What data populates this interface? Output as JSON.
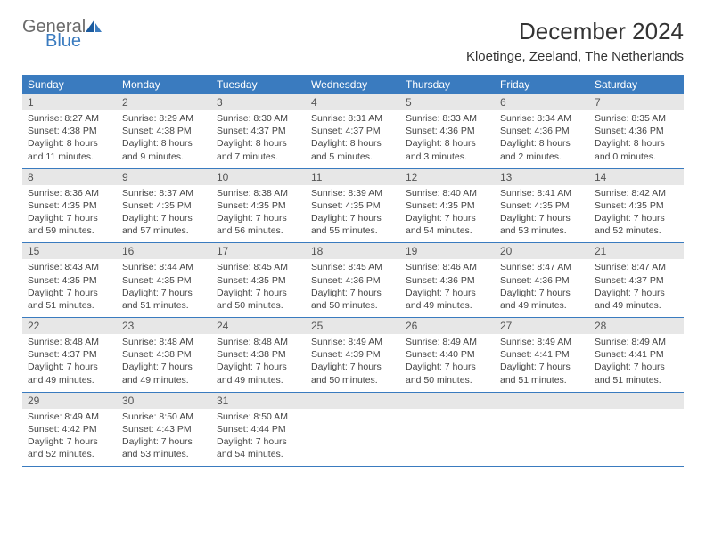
{
  "logo": {
    "general": "General",
    "blue": "Blue"
  },
  "title": "December 2024",
  "location": "Kloetinge, Zeeland, The Netherlands",
  "colors": {
    "header_bg": "#3a7bbf",
    "header_text": "#ffffff",
    "daynum_bg": "#e7e7e7",
    "week_border": "#3a7bbf",
    "body_text": "#444444",
    "logo_gray": "#6b6b6b",
    "logo_blue": "#3a7bbf"
  },
  "weekdays": [
    "Sunday",
    "Monday",
    "Tuesday",
    "Wednesday",
    "Thursday",
    "Friday",
    "Saturday"
  ],
  "weeks": [
    [
      {
        "n": "1",
        "sr": "Sunrise: 8:27 AM",
        "ss": "Sunset: 4:38 PM",
        "dl1": "Daylight: 8 hours",
        "dl2": "and 11 minutes."
      },
      {
        "n": "2",
        "sr": "Sunrise: 8:29 AM",
        "ss": "Sunset: 4:38 PM",
        "dl1": "Daylight: 8 hours",
        "dl2": "and 9 minutes."
      },
      {
        "n": "3",
        "sr": "Sunrise: 8:30 AM",
        "ss": "Sunset: 4:37 PM",
        "dl1": "Daylight: 8 hours",
        "dl2": "and 7 minutes."
      },
      {
        "n": "4",
        "sr": "Sunrise: 8:31 AM",
        "ss": "Sunset: 4:37 PM",
        "dl1": "Daylight: 8 hours",
        "dl2": "and 5 minutes."
      },
      {
        "n": "5",
        "sr": "Sunrise: 8:33 AM",
        "ss": "Sunset: 4:36 PM",
        "dl1": "Daylight: 8 hours",
        "dl2": "and 3 minutes."
      },
      {
        "n": "6",
        "sr": "Sunrise: 8:34 AM",
        "ss": "Sunset: 4:36 PM",
        "dl1": "Daylight: 8 hours",
        "dl2": "and 2 minutes."
      },
      {
        "n": "7",
        "sr": "Sunrise: 8:35 AM",
        "ss": "Sunset: 4:36 PM",
        "dl1": "Daylight: 8 hours",
        "dl2": "and 0 minutes."
      }
    ],
    [
      {
        "n": "8",
        "sr": "Sunrise: 8:36 AM",
        "ss": "Sunset: 4:35 PM",
        "dl1": "Daylight: 7 hours",
        "dl2": "and 59 minutes."
      },
      {
        "n": "9",
        "sr": "Sunrise: 8:37 AM",
        "ss": "Sunset: 4:35 PM",
        "dl1": "Daylight: 7 hours",
        "dl2": "and 57 minutes."
      },
      {
        "n": "10",
        "sr": "Sunrise: 8:38 AM",
        "ss": "Sunset: 4:35 PM",
        "dl1": "Daylight: 7 hours",
        "dl2": "and 56 minutes."
      },
      {
        "n": "11",
        "sr": "Sunrise: 8:39 AM",
        "ss": "Sunset: 4:35 PM",
        "dl1": "Daylight: 7 hours",
        "dl2": "and 55 minutes."
      },
      {
        "n": "12",
        "sr": "Sunrise: 8:40 AM",
        "ss": "Sunset: 4:35 PM",
        "dl1": "Daylight: 7 hours",
        "dl2": "and 54 minutes."
      },
      {
        "n": "13",
        "sr": "Sunrise: 8:41 AM",
        "ss": "Sunset: 4:35 PM",
        "dl1": "Daylight: 7 hours",
        "dl2": "and 53 minutes."
      },
      {
        "n": "14",
        "sr": "Sunrise: 8:42 AM",
        "ss": "Sunset: 4:35 PM",
        "dl1": "Daylight: 7 hours",
        "dl2": "and 52 minutes."
      }
    ],
    [
      {
        "n": "15",
        "sr": "Sunrise: 8:43 AM",
        "ss": "Sunset: 4:35 PM",
        "dl1": "Daylight: 7 hours",
        "dl2": "and 51 minutes."
      },
      {
        "n": "16",
        "sr": "Sunrise: 8:44 AM",
        "ss": "Sunset: 4:35 PM",
        "dl1": "Daylight: 7 hours",
        "dl2": "and 51 minutes."
      },
      {
        "n": "17",
        "sr": "Sunrise: 8:45 AM",
        "ss": "Sunset: 4:35 PM",
        "dl1": "Daylight: 7 hours",
        "dl2": "and 50 minutes."
      },
      {
        "n": "18",
        "sr": "Sunrise: 8:45 AM",
        "ss": "Sunset: 4:36 PM",
        "dl1": "Daylight: 7 hours",
        "dl2": "and 50 minutes."
      },
      {
        "n": "19",
        "sr": "Sunrise: 8:46 AM",
        "ss": "Sunset: 4:36 PM",
        "dl1": "Daylight: 7 hours",
        "dl2": "and 49 minutes."
      },
      {
        "n": "20",
        "sr": "Sunrise: 8:47 AM",
        "ss": "Sunset: 4:36 PM",
        "dl1": "Daylight: 7 hours",
        "dl2": "and 49 minutes."
      },
      {
        "n": "21",
        "sr": "Sunrise: 8:47 AM",
        "ss": "Sunset: 4:37 PM",
        "dl1": "Daylight: 7 hours",
        "dl2": "and 49 minutes."
      }
    ],
    [
      {
        "n": "22",
        "sr": "Sunrise: 8:48 AM",
        "ss": "Sunset: 4:37 PM",
        "dl1": "Daylight: 7 hours",
        "dl2": "and 49 minutes."
      },
      {
        "n": "23",
        "sr": "Sunrise: 8:48 AM",
        "ss": "Sunset: 4:38 PM",
        "dl1": "Daylight: 7 hours",
        "dl2": "and 49 minutes."
      },
      {
        "n": "24",
        "sr": "Sunrise: 8:48 AM",
        "ss": "Sunset: 4:38 PM",
        "dl1": "Daylight: 7 hours",
        "dl2": "and 49 minutes."
      },
      {
        "n": "25",
        "sr": "Sunrise: 8:49 AM",
        "ss": "Sunset: 4:39 PM",
        "dl1": "Daylight: 7 hours",
        "dl2": "and 50 minutes."
      },
      {
        "n": "26",
        "sr": "Sunrise: 8:49 AM",
        "ss": "Sunset: 4:40 PM",
        "dl1": "Daylight: 7 hours",
        "dl2": "and 50 minutes."
      },
      {
        "n": "27",
        "sr": "Sunrise: 8:49 AM",
        "ss": "Sunset: 4:41 PM",
        "dl1": "Daylight: 7 hours",
        "dl2": "and 51 minutes."
      },
      {
        "n": "28",
        "sr": "Sunrise: 8:49 AM",
        "ss": "Sunset: 4:41 PM",
        "dl1": "Daylight: 7 hours",
        "dl2": "and 51 minutes."
      }
    ],
    [
      {
        "n": "29",
        "sr": "Sunrise: 8:49 AM",
        "ss": "Sunset: 4:42 PM",
        "dl1": "Daylight: 7 hours",
        "dl2": "and 52 minutes."
      },
      {
        "n": "30",
        "sr": "Sunrise: 8:50 AM",
        "ss": "Sunset: 4:43 PM",
        "dl1": "Daylight: 7 hours",
        "dl2": "and 53 minutes."
      },
      {
        "n": "31",
        "sr": "Sunrise: 8:50 AM",
        "ss": "Sunset: 4:44 PM",
        "dl1": "Daylight: 7 hours",
        "dl2": "and 54 minutes."
      },
      null,
      null,
      null,
      null
    ]
  ]
}
